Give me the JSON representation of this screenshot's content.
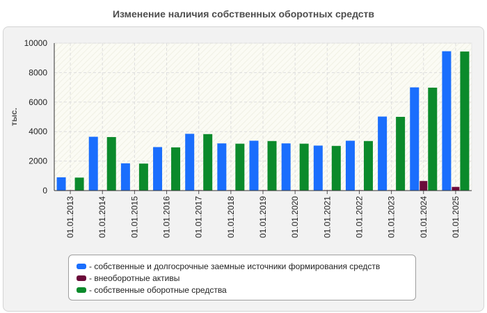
{
  "chart_data": {
    "type": "bar",
    "title": "Изменение наличия собственных оборотных средств",
    "ylabel": "тыс.",
    "xlabel": "",
    "ylim": [
      0,
      10000
    ],
    "yticks": [
      0,
      2000,
      4000,
      6000,
      8000,
      10000
    ],
    "grid": true,
    "legend_position": "bottom",
    "categories": [
      "01.01.2013",
      "01.01.2014",
      "01.01.2015",
      "01.01.2016",
      "01.01.2017",
      "01.01.2018",
      "01.01.2019",
      "01.01.2020",
      "01.01.2021",
      "01.01.2022",
      "01.01.2023",
      "01.01.2024",
      "01.01.2025"
    ],
    "series": [
      {
        "name": "- собственные и долгосрочные заемные источники формирования средств",
        "color": "#1a6efd",
        "values": [
          900,
          3650,
          1850,
          2950,
          3850,
          3200,
          3380,
          3200,
          3050,
          3380,
          5020,
          7000,
          9450
        ]
      },
      {
        "name": "- внеоборотные активы",
        "color": "#6b0a3a",
        "values": [
          30,
          30,
          30,
          30,
          30,
          30,
          30,
          30,
          30,
          30,
          30,
          650,
          250
        ]
      },
      {
        "name": "- собственные оборотные средства",
        "color": "#0b8a2b",
        "values": [
          880,
          3630,
          1830,
          2930,
          3830,
          3180,
          3360,
          3180,
          3030,
          3360,
          5000,
          6980,
          9430
        ]
      }
    ]
  }
}
